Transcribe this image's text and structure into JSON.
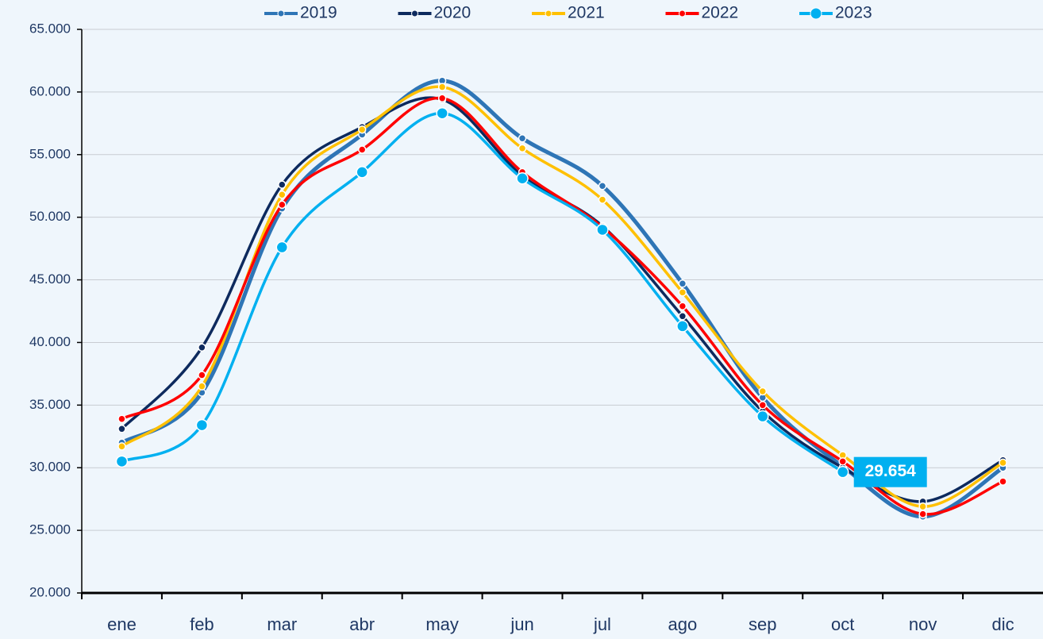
{
  "chart_data": {
    "type": "line",
    "categories": [
      "ene",
      "feb",
      "mar",
      "abr",
      "may",
      "jun",
      "jul",
      "ago",
      "sep",
      "oct",
      "nov",
      "dic"
    ],
    "series": [
      {
        "name": "2019",
        "color": "#2e75b6",
        "values": [
          32000,
          36000,
          50700,
          56600,
          60900,
          56300,
          52500,
          44700,
          35600,
          30100,
          26100,
          30000
        ]
      },
      {
        "name": "2020",
        "color": "#0d2a5e",
        "values": [
          33100,
          39600,
          52600,
          57200,
          59400,
          53300,
          49300,
          42100,
          34500,
          30000,
          27300,
          30600
        ]
      },
      {
        "name": "2021",
        "color": "#ffc000",
        "values": [
          31700,
          36500,
          51800,
          57000,
          60400,
          55500,
          51400,
          44000,
          36100,
          31000,
          26900,
          30400
        ]
      },
      {
        "name": "2022",
        "color": "#ff0000",
        "values": [
          33900,
          37400,
          51000,
          55400,
          59500,
          53600,
          49200,
          42900,
          35000,
          30500,
          26300,
          28900
        ]
      },
      {
        "name": "2023",
        "color": "#00b0f0",
        "values": [
          30500,
          33400,
          47600,
          53600,
          58300,
          53100,
          49000,
          41300,
          34100,
          29654,
          null,
          null
        ],
        "value_labels": [
          null,
          null,
          null,
          null,
          null,
          null,
          null,
          null,
          null,
          "29.654",
          null,
          null
        ]
      }
    ],
    "ylim": [
      20000,
      65000
    ],
    "yticks": [
      {
        "value": 20000,
        "label": "20.000"
      },
      {
        "value": 25000,
        "label": "25.000"
      },
      {
        "value": 30000,
        "label": "30.000"
      },
      {
        "value": 35000,
        "label": "35.000"
      },
      {
        "value": 40000,
        "label": "40.000"
      },
      {
        "value": 45000,
        "label": "45.000"
      },
      {
        "value": 50000,
        "label": "50.000"
      },
      {
        "value": 55000,
        "label": "55.000"
      },
      {
        "value": 60000,
        "label": "60.000"
      },
      {
        "value": 65000,
        "label": "65.000"
      }
    ],
    "grid": true,
    "smooth": true,
    "legend": "top"
  }
}
